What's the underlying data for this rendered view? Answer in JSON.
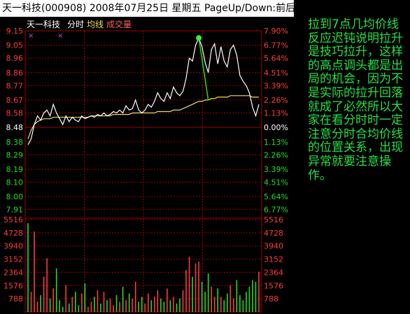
{
  "header": {
    "stock_name": "天一科技",
    "stock_code": "(000908)",
    "date": "2008年07月25日",
    "weekday": "星期五",
    "hint": "PageUp/Down:前后日"
  },
  "legend": {
    "name": "天一科技",
    "fenshi": "分时",
    "junxian": "均线",
    "chengjiaoliang": "成交量"
  },
  "note": "拉到7点几均价线反应迟钝说明拉升是技巧拉升，这样的高点调头都是出局的机会，因为不是实际的拉升回落就成了必然所以大家在看分时时一定注意分时合均价线的位置关系，出现异常就要注意操作。",
  "colors": {
    "up": "#ff3b3b",
    "down": "#22dd22",
    "price_line": "#ffffff",
    "avg_line": "#e8e060",
    "frame": "#a00000",
    "note_text": "#26e044"
  },
  "chart_data": {
    "type": "line",
    "prev_close": 8.48,
    "price_axis": {
      "ticks": [
        9.15,
        9.05,
        8.96,
        8.86,
        8.77,
        8.67,
        8.58,
        8.48,
        8.38,
        8.29,
        8.19,
        8.1,
        8.0,
        7.91
      ],
      "pct_labels": [
        "7.90%",
        "6.77%",
        "5.64%",
        "4.51%",
        "3.39%",
        "2.26%",
        "1.13%",
        "0.00%",
        "1.13%",
        "2.26%",
        "3.39%",
        "4.51%",
        "5.64%",
        "6.77%"
      ],
      "range": [
        7.86,
        9.15
      ]
    },
    "volume_axis": {
      "ticks": [
        5516,
        4728,
        3940,
        3152,
        2364,
        1576,
        788
      ],
      "range": [
        0,
        5516
      ]
    },
    "price": [
      8.36,
      8.4,
      8.5,
      8.56,
      8.53,
      8.58,
      8.6,
      8.56,
      8.64,
      8.58,
      8.54,
      8.5,
      8.56,
      8.52,
      8.55,
      8.53,
      8.52,
      8.56,
      8.54,
      8.55,
      8.56,
      8.55,
      8.57,
      8.56,
      8.58,
      8.56,
      8.57,
      8.59,
      8.58,
      8.6,
      8.58,
      8.63,
      8.6,
      8.61,
      8.67,
      8.6,
      8.58,
      8.6,
      8.64,
      8.62,
      8.66,
      8.72,
      8.68,
      8.66,
      8.72,
      8.68,
      8.76,
      8.72,
      8.7,
      8.73,
      8.82,
      8.96,
      8.94,
      9.05,
      9.1,
      9.04,
      8.93,
      8.86,
      9.02,
      9.06,
      8.92,
      9.04,
      8.94,
      8.9,
      9.02,
      9.05,
      8.98,
      8.84,
      8.8,
      8.77,
      8.72,
      8.62,
      8.56,
      8.64
    ],
    "avg_price": [
      8.4,
      8.46,
      8.5,
      8.52,
      8.53,
      8.54,
      8.54,
      8.54,
      8.55,
      8.55,
      8.55,
      8.55,
      8.55,
      8.55,
      8.55,
      8.55,
      8.55,
      8.55,
      8.55,
      8.55,
      8.56,
      8.56,
      8.56,
      8.56,
      8.56,
      8.56,
      8.56,
      8.57,
      8.57,
      8.57,
      8.57,
      8.57,
      8.57,
      8.58,
      8.58,
      8.58,
      8.58,
      8.58,
      8.58,
      8.58,
      8.58,
      8.59,
      8.59,
      8.59,
      8.59,
      8.59,
      8.6,
      8.6,
      8.6,
      8.61,
      8.62,
      8.63,
      8.64,
      8.65,
      8.66,
      8.66,
      8.67,
      8.67,
      8.68,
      8.68,
      8.69,
      8.69,
      8.69,
      8.69,
      8.7,
      8.7,
      8.7,
      8.7,
      8.7,
      8.7,
      8.7,
      8.69,
      8.69,
      8.69
    ],
    "volume": [
      5300,
      1200,
      4800,
      600,
      1000,
      2100,
      3200,
      800,
      1400,
      2600,
      700,
      300,
      1600,
      500,
      900,
      1200,
      400,
      1100,
      1700,
      300,
      600,
      900,
      1300,
      500,
      1200,
      700,
      800,
      400,
      1000,
      600,
      1500,
      700,
      1100,
      800,
      1800,
      600,
      900,
      500,
      1100,
      700,
      900,
      1300,
      800,
      600,
      1400,
      700,
      900,
      500,
      800,
      1300,
      2500,
      3300,
      2100,
      2900,
      3000,
      1800,
      1200,
      2300,
      1500,
      900,
      1400,
      900,
      700,
      1100,
      1600,
      800,
      1900,
      1000,
      700,
      1200,
      1500,
      1900,
      1800,
      2400
    ]
  }
}
